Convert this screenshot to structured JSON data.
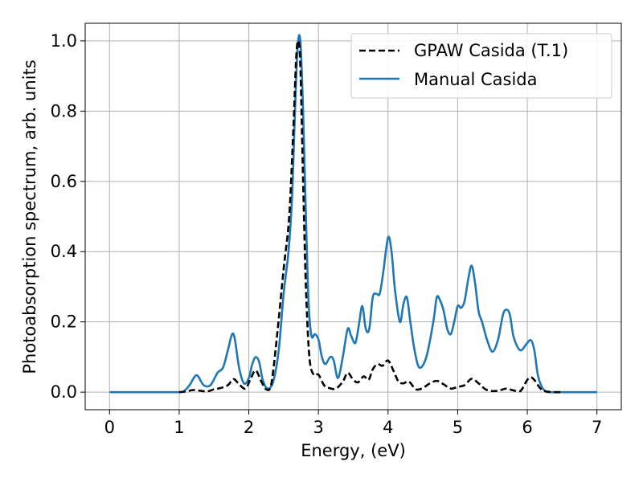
{
  "chart_data": {
    "type": "line",
    "title": "",
    "xlabel": "Energy, (eV)",
    "ylabel": "Photoabsorption spectrum, arb. units",
    "xlim": [
      -0.35,
      7.35
    ],
    "ylim": [
      -0.05,
      1.05
    ],
    "xticks": [
      "0",
      "1",
      "2",
      "3",
      "4",
      "5",
      "6",
      "7"
    ],
    "yticks": [
      "0.0",
      "0.2",
      "0.4",
      "0.6",
      "0.8",
      "1.0"
    ],
    "grid": true,
    "legend_position": "top-right",
    "series": [
      {
        "name": "GPAW Casida (T.1)",
        "color": "#000000",
        "style": "dashed",
        "x": [
          1.0,
          1.1,
          1.2,
          1.3,
          1.4,
          1.5,
          1.6,
          1.7,
          1.78,
          1.85,
          1.95,
          2.03,
          2.1,
          2.18,
          2.25,
          2.32,
          2.4,
          2.5,
          2.58,
          2.64,
          2.68,
          2.71,
          2.74,
          2.78,
          2.82,
          2.87,
          2.93,
          3.0,
          3.08,
          3.15,
          3.25,
          3.35,
          3.42,
          3.5,
          3.57,
          3.65,
          3.72,
          3.78,
          3.85,
          3.92,
          4.0,
          4.08,
          4.15,
          4.22,
          4.3,
          4.4,
          4.5,
          4.6,
          4.7,
          4.8,
          4.9,
          5.0,
          5.1,
          5.2,
          5.3,
          5.4,
          5.5,
          5.6,
          5.7,
          5.8,
          5.9,
          6.0,
          6.05,
          6.1,
          6.2,
          6.3,
          6.4,
          6.5
        ],
        "y": [
          0.0,
          0.002,
          0.006,
          0.004,
          0.002,
          0.008,
          0.012,
          0.02,
          0.037,
          0.025,
          0.01,
          0.04,
          0.062,
          0.03,
          0.008,
          0.02,
          0.15,
          0.35,
          0.5,
          0.75,
          0.95,
          1.0,
          0.93,
          0.6,
          0.3,
          0.1,
          0.05,
          0.05,
          0.02,
          0.012,
          0.01,
          0.03,
          0.055,
          0.035,
          0.028,
          0.045,
          0.035,
          0.065,
          0.08,
          0.075,
          0.09,
          0.06,
          0.03,
          0.025,
          0.03,
          0.008,
          0.012,
          0.025,
          0.032,
          0.022,
          0.01,
          0.015,
          0.02,
          0.038,
          0.025,
          0.008,
          0.003,
          0.005,
          0.01,
          0.005,
          0.003,
          0.035,
          0.042,
          0.035,
          0.008,
          0.001,
          0.0,
          0.0
        ]
      },
      {
        "name": "Manual Casida",
        "color": "#1f77b4",
        "style": "solid",
        "x": [
          0.0,
          0.5,
          1.0,
          1.08,
          1.15,
          1.25,
          1.35,
          1.45,
          1.55,
          1.63,
          1.7,
          1.76,
          1.8,
          1.86,
          1.93,
          2.0,
          2.05,
          2.1,
          2.15,
          2.2,
          2.27,
          2.35,
          2.43,
          2.5,
          2.57,
          2.62,
          2.66,
          2.7,
          2.74,
          2.78,
          2.82,
          2.86,
          2.9,
          2.95,
          3.0,
          3.05,
          3.1,
          3.17,
          3.22,
          3.28,
          3.35,
          3.42,
          3.47,
          3.53,
          3.58,
          3.63,
          3.68,
          3.73,
          3.78,
          3.83,
          3.88,
          3.93,
          4.0,
          4.05,
          4.1,
          4.17,
          4.22,
          4.27,
          4.32,
          4.38,
          4.45,
          4.55,
          4.65,
          4.7,
          4.75,
          4.8,
          4.85,
          4.9,
          4.95,
          5.0,
          5.05,
          5.1,
          5.15,
          5.2,
          5.25,
          5.3,
          5.35,
          5.42,
          5.5,
          5.58,
          5.65,
          5.7,
          5.75,
          5.8,
          5.87,
          5.92,
          5.98,
          6.05,
          6.1,
          6.15,
          6.2,
          6.25,
          6.3,
          6.4,
          7.0
        ],
        "y": [
          0.0,
          0.0,
          0.0,
          0.005,
          0.02,
          0.048,
          0.02,
          0.02,
          0.055,
          0.07,
          0.12,
          0.165,
          0.15,
          0.07,
          0.025,
          0.04,
          0.08,
          0.1,
          0.085,
          0.035,
          0.01,
          0.03,
          0.12,
          0.28,
          0.4,
          0.55,
          0.78,
          0.98,
          1.0,
          0.8,
          0.5,
          0.25,
          0.16,
          0.165,
          0.15,
          0.1,
          0.08,
          0.1,
          0.09,
          0.04,
          0.1,
          0.18,
          0.16,
          0.14,
          0.19,
          0.245,
          0.18,
          0.18,
          0.27,
          0.28,
          0.28,
          0.34,
          0.44,
          0.4,
          0.29,
          0.2,
          0.25,
          0.27,
          0.2,
          0.12,
          0.07,
          0.1,
          0.2,
          0.27,
          0.26,
          0.23,
          0.18,
          0.165,
          0.2,
          0.245,
          0.24,
          0.26,
          0.32,
          0.36,
          0.31,
          0.23,
          0.2,
          0.15,
          0.115,
          0.15,
          0.22,
          0.235,
          0.22,
          0.16,
          0.125,
          0.12,
          0.135,
          0.148,
          0.12,
          0.05,
          0.018,
          0.004,
          0.0,
          0.0,
          0.0
        ]
      }
    ]
  }
}
